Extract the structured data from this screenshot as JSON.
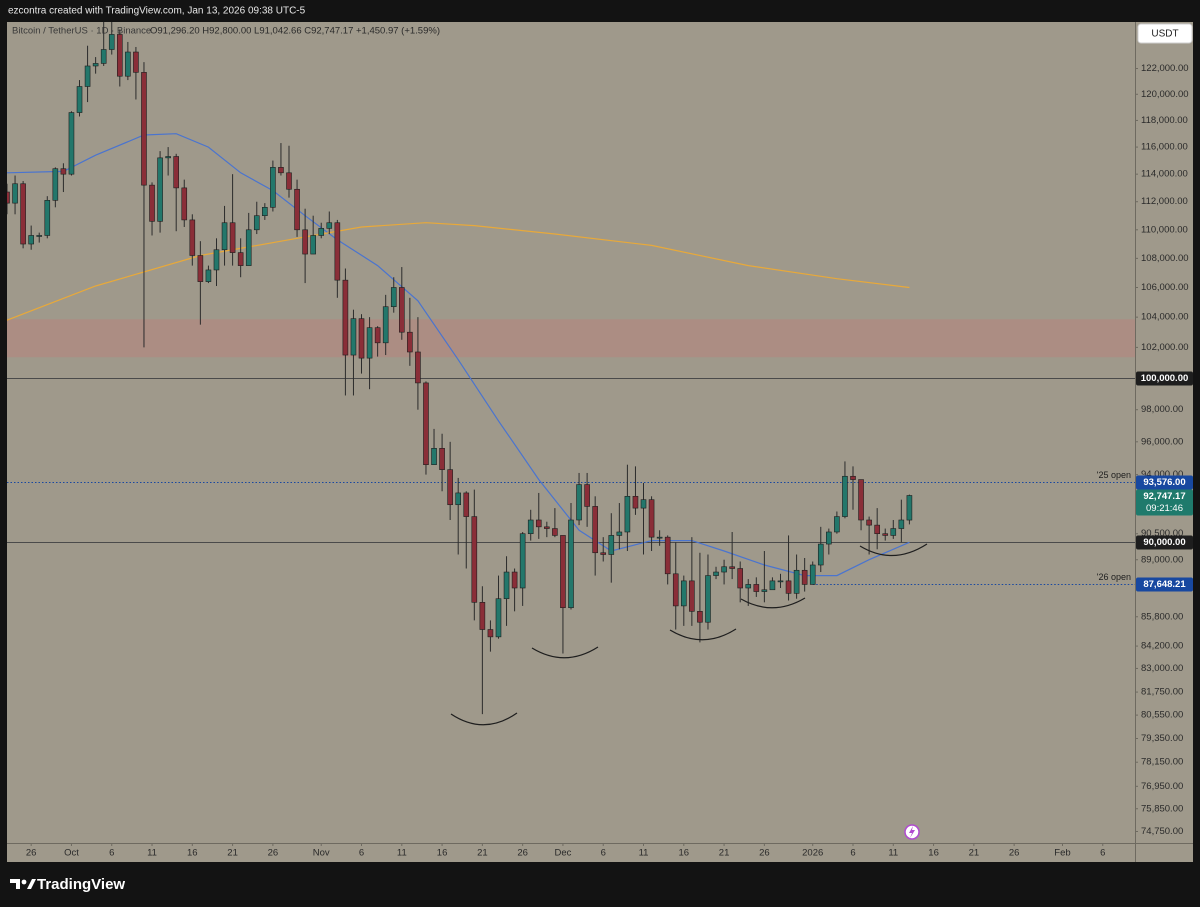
{
  "credit": "ezcontra created with TradingView.com, Jan 13, 2026 09:38 UTC-5",
  "currency_button": "USDT",
  "footer": {
    "brand": "TradingView"
  },
  "chart_data": {
    "type": "candlestick",
    "symbol": "Bitcoin / TetherUS · 1D · Binance",
    "ohlc_text": "O91,296.20 H92,800.00 L91,042.66 C92,747.17 +1,450.97 (+1.59%)",
    "log_scale": true,
    "grid": false,
    "up_color": "#23776b",
    "down_color": "#8a2e38",
    "wick_color": "#2b2b2b",
    "xlim": [
      "Sep 23",
      "Feb 10"
    ],
    "ylim": [
      74200,
      125700
    ],
    "x": [
      "Sep 23",
      "Sep 24",
      "Sep 25",
      "Sep 26",
      "Sep 27",
      "Sep 28",
      "Sep 29",
      "Sep 30",
      "Oct 1",
      "Oct 2",
      "Oct 3",
      "Oct 4",
      "Oct 5",
      "Oct 6",
      "Oct 7",
      "Oct 8",
      "Oct 9",
      "Oct 10",
      "Oct 11",
      "Oct 12",
      "Oct 13",
      "Oct 14",
      "Oct 15",
      "Oct 16",
      "Oct 17",
      "Oct 18",
      "Oct 19",
      "Oct 20",
      "Oct 21",
      "Oct 22",
      "Oct 23",
      "Oct 24",
      "Oct 25",
      "Oct 26",
      "Oct 27",
      "Oct 28",
      "Oct 29",
      "Oct 30",
      "Oct 31",
      "Nov 1",
      "Nov 2",
      "Nov 3",
      "Nov 4",
      "Nov 5",
      "Nov 6",
      "Nov 7",
      "Nov 8",
      "Nov 9",
      "Nov 10",
      "Nov 11",
      "Nov 12",
      "Nov 13",
      "Nov 14",
      "Nov 15",
      "Nov 16",
      "Nov 17",
      "Nov 18",
      "Nov 19",
      "Nov 20",
      "Nov 21",
      "Nov 22",
      "Nov 23",
      "Nov 24",
      "Nov 25",
      "Nov 26",
      "Nov 27",
      "Nov 28",
      "Nov 29",
      "Nov 30",
      "Dec 1",
      "Dec 2",
      "Dec 3",
      "Dec 4",
      "Dec 5",
      "Dec 6",
      "Dec 7",
      "Dec 8",
      "Dec 9",
      "Dec 10",
      "Dec 11",
      "Dec 12",
      "Dec 13",
      "Dec 14",
      "Dec 15",
      "Dec 16",
      "Dec 17",
      "Dec 18",
      "Dec 19",
      "Dec 20",
      "Dec 21",
      "Dec 22",
      "Dec 23",
      "Dec 24",
      "Dec 25",
      "Dec 26",
      "Dec 27",
      "Dec 28",
      "Dec 29",
      "Dec 30",
      "Dec 31",
      "Jan 1",
      "Jan 2",
      "Jan 3",
      "Jan 4",
      "Jan 5",
      "Jan 6",
      "Jan 7",
      "Jan 8",
      "Jan 9",
      "Jan 10",
      "Jan 11",
      "Jan 12",
      "Jan 13"
    ],
    "open": [
      112700,
      111900,
      113300,
      109000,
      109600,
      109600,
      112100,
      114400,
      114000,
      118600,
      120600,
      122200,
      122400,
      123500,
      124700,
      121400,
      123300,
      121700,
      113200,
      110600,
      115200,
      115300,
      113000,
      110700,
      108200,
      106400,
      107200,
      108600,
      110500,
      108400,
      107500,
      110000,
      111000,
      111600,
      114500,
      114100,
      112900,
      110000,
      108300,
      109600,
      110100,
      110500,
      106500,
      101500,
      103900,
      101300,
      103300,
      102300,
      104700,
      106000,
      103000,
      101700,
      99700,
      94600,
      95600,
      94300,
      92200,
      92900,
      91500,
      86600,
      85100,
      84700,
      86800,
      88300,
      87400,
      90500,
      91300,
      90900,
      90800,
      90400,
      86300,
      91300,
      93400,
      92100,
      89400,
      89300,
      90400,
      90600,
      92700,
      92000,
      92500,
      90300,
      90300,
      88200,
      86400,
      87800,
      86100,
      85500,
      88100,
      88300,
      88600,
      88500,
      87400,
      87600,
      87200,
      87300,
      87800,
      87800,
      87100,
      88400,
      87600,
      88700,
      89900,
      90600,
      91500,
      93900,
      93700,
      91300,
      91000,
      90500,
      90400,
      90800,
      91296.2
    ],
    "high": [
      113300,
      113900,
      113500,
      110300,
      109800,
      112400,
      114500,
      114800,
      118700,
      121100,
      123800,
      122900,
      125700,
      126200,
      125100,
      124100,
      123700,
      122500,
      113400,
      115700,
      116000,
      115500,
      113600,
      111100,
      109200,
      107500,
      109400,
      111700,
      114000,
      109400,
      111200,
      112000,
      111900,
      115000,
      116300,
      116100,
      113600,
      111500,
      111000,
      110500,
      111300,
      110700,
      107300,
      104500,
      104200,
      104000,
      103400,
      105500,
      106700,
      107400,
      105300,
      104000,
      99800,
      96800,
      96500,
      96000,
      93800,
      93000,
      93100,
      87500,
      85600,
      88100,
      89200,
      88500,
      90600,
      91900,
      92900,
      91200,
      92000,
      90400,
      92300,
      94100,
      94100,
      92700,
      90300,
      91700,
      92300,
      94600,
      94500,
      93500,
      92700,
      90700,
      90400,
      90000,
      88100,
      90300,
      89400,
      89300,
      88600,
      89000,
      90600,
      88900,
      87900,
      88000,
      89500,
      88000,
      88200,
      90400,
      89300,
      89100,
      88900,
      90900,
      90800,
      91800,
      94800,
      94500,
      93700,
      91500,
      92000,
      90800,
      91300,
      92500,
      92800
    ],
    "low": [
      111100,
      111100,
      108700,
      108600,
      109100,
      109400,
      111600,
      112700,
      113900,
      118300,
      119400,
      121600,
      122200,
      123100,
      120600,
      121100,
      119600,
      102000,
      109600,
      109800,
      113900,
      109900,
      110200,
      107500,
      103500,
      106300,
      106100,
      107500,
      107500,
      106700,
      107500,
      109700,
      110700,
      111300,
      113900,
      112300,
      109500,
      106300,
      108300,
      109400,
      109700,
      105300,
      98900,
      98900,
      100300,
      99300,
      101400,
      101500,
      104300,
      102500,
      100800,
      98000,
      94000,
      94600,
      93000,
      91300,
      89300,
      88500,
      85600,
      80600,
      83900,
      84600,
      85300,
      86100,
      86400,
      90100,
      90200,
      90300,
      90300,
      83800,
      86200,
      91000,
      90900,
      88100,
      88900,
      87700,
      89600,
      89500,
      91600,
      89300,
      89500,
      89800,
      87600,
      85100,
      85300,
      85300,
      84400,
      85100,
      87900,
      87600,
      87900,
      86600,
      86400,
      86900,
      86600,
      87300,
      87400,
      86700,
      86800,
      87200,
      87600,
      88300,
      89300,
      90500,
      91400,
      91900,
      90700,
      89300,
      89600,
      90100,
      90200,
      90000,
      91042.66
    ],
    "close": [
      111900,
      113300,
      109000,
      109600,
      109600,
      112100,
      114400,
      114000,
      118600,
      120600,
      122200,
      122400,
      123500,
      124700,
      121400,
      123300,
      121700,
      113200,
      110600,
      115200,
      115300,
      113000,
      110700,
      108200,
      106400,
      107200,
      108600,
      110500,
      108400,
      107500,
      110000,
      111000,
      111600,
      114500,
      114100,
      112900,
      110000,
      108300,
      109600,
      110100,
      110500,
      106500,
      101500,
      103900,
      101300,
      103300,
      102300,
      104700,
      106000,
      103000,
      101700,
      99700,
      94600,
      95600,
      94300,
      92200,
      92900,
      91500,
      86600,
      85100,
      84700,
      86800,
      88300,
      87400,
      90500,
      91300,
      90900,
      90800,
      90400,
      86300,
      91300,
      93400,
      92100,
      89400,
      89300,
      90400,
      90600,
      92700,
      92000,
      92500,
      90300,
      90300,
      88200,
      86400,
      87800,
      86100,
      85500,
      88100,
      88300,
      88600,
      88500,
      87400,
      87600,
      87200,
      87300,
      87800,
      87800,
      87100,
      88400,
      87600,
      88700,
      89900,
      90600,
      91500,
      93900,
      93700,
      91300,
      91000,
      90500,
      90400,
      90800,
      91300,
      92747.17
    ],
    "last_label": "92,747.17",
    "last_color": "#1f7a6c",
    "countdown": "09:21:46",
    "lines": [
      {
        "color": "#4a74cf",
        "x": [
          "Sep 23",
          "Sep 30",
          "Oct 4",
          "Oct 10",
          "Oct 14",
          "Oct 18",
          "Oct 22",
          "Oct 26",
          "Oct 30",
          "Nov 3",
          "Nov 8",
          "Nov 13",
          "Nov 18",
          "Nov 23",
          "Nov 28",
          "Dec 3",
          "Dec 7",
          "Dec 12",
          "Dec 17",
          "Dec 21",
          "Dec 26",
          "Dec 31",
          "Jan 4",
          "Jan 8",
          "Jan 13"
        ],
        "values": [
          114100,
          114200,
          115400,
          116900,
          117000,
          116000,
          114100,
          112800,
          111000,
          109300,
          107500,
          105100,
          101200,
          97300,
          93700,
          90700,
          89500,
          90100,
          90100,
          89500,
          88700,
          88100,
          88100,
          89000,
          90000
        ]
      },
      {
        "color": "#e8a93a",
        "x": [
          "Sep 23",
          "Oct 4",
          "Oct 17",
          "Oct 29",
          "Nov 6",
          "Nov 14",
          "Nov 20",
          "Nov 30",
          "Dec 12",
          "Dec 24",
          "Jan 4",
          "Jan 13"
        ],
        "values": [
          103800,
          106100,
          108200,
          109400,
          110200,
          110500,
          110300,
          109700,
          108900,
          107500,
          106600,
          106000
        ]
      }
    ],
    "zone": {
      "ylim": [
        101360,
        103860
      ],
      "color": "#b08a80"
    },
    "levels": [
      {
        "value": 100000,
        "label": "100,000.00",
        "style": "solid",
        "color": "#4a4a4a",
        "box": "#1e1e1e"
      },
      {
        "value": 93576,
        "label": "93,576.00",
        "style": "dotted",
        "color": "#1848a0",
        "box": "#1848a0",
        "note": "'25 open"
      },
      {
        "value": 90000,
        "label": "90,000.00",
        "style": "solid",
        "color": "#4a4a4a",
        "box": "#1e1e1e"
      },
      {
        "value": 87648.21,
        "label": "87,648.21",
        "style": "dotted",
        "color": "#1848a0",
        "box": "#1848a0",
        "note": "'26 open",
        "start": "Jan 1"
      }
    ],
    "yticks": [
      {
        "value": 122000,
        "label": "122,000.00"
      },
      {
        "value": 120000,
        "label": "120,000.00"
      },
      {
        "value": 118000,
        "label": "118,000.00"
      },
      {
        "value": 116000,
        "label": "116,000.00"
      },
      {
        "value": 114000,
        "label": "114,000.00"
      },
      {
        "value": 112000,
        "label": "112,000.00"
      },
      {
        "value": 110000,
        "label": "110,000.00"
      },
      {
        "value": 108000,
        "label": "108,000.00"
      },
      {
        "value": 106000,
        "label": "106,000.00"
      },
      {
        "value": 104000,
        "label": "104,000.00"
      },
      {
        "value": 102000,
        "label": "102,000.00"
      },
      {
        "value": 98000,
        "label": "98,000.00"
      },
      {
        "value": 96000,
        "label": "96,000.00"
      },
      {
        "value": 94000,
        "label": "94,000.00"
      },
      {
        "value": 90500,
        "label": "90,500.00"
      },
      {
        "value": 89000,
        "label": "89,000.00"
      },
      {
        "value": 85800,
        "label": "85,800.00"
      },
      {
        "value": 84200,
        "label": "84,200.00"
      },
      {
        "value": 83000,
        "label": "83,000.00"
      },
      {
        "value": 81750,
        "label": "81,750.00"
      },
      {
        "value": 80550,
        "label": "80,550.00"
      },
      {
        "value": 79350,
        "label": "79,350.00"
      },
      {
        "value": 78150,
        "label": "78,150.00"
      },
      {
        "value": 76950,
        "label": "76,950.00"
      },
      {
        "value": 75850,
        "label": "75,850.00"
      },
      {
        "value": 74750,
        "label": "74,750.00"
      }
    ],
    "xticks": [
      {
        "value": "Sep 26",
        "label": "26"
      },
      {
        "value": "Oct 1",
        "label": "Oct"
      },
      {
        "value": "Oct 6",
        "label": "6"
      },
      {
        "value": "Oct 11",
        "label": "11"
      },
      {
        "value": "Oct 16",
        "label": "16"
      },
      {
        "value": "Oct 21",
        "label": "21"
      },
      {
        "value": "Oct 26",
        "label": "26"
      },
      {
        "value": "Nov 1",
        "label": "Nov"
      },
      {
        "value": "Nov 6",
        "label": "6"
      },
      {
        "value": "Nov 11",
        "label": "11"
      },
      {
        "value": "Nov 16",
        "label": "16"
      },
      {
        "value": "Nov 21",
        "label": "21"
      },
      {
        "value": "Nov 26",
        "label": "26"
      },
      {
        "value": "Dec 1",
        "label": "Dec"
      },
      {
        "value": "Dec 6",
        "label": "6"
      },
      {
        "value": "Dec 11",
        "label": "11"
      },
      {
        "value": "Dec 16",
        "label": "16"
      },
      {
        "value": "Dec 21",
        "label": "21"
      },
      {
        "value": "Dec 26",
        "label": "26"
      },
      {
        "value": "Jan 1",
        "label": "2026"
      },
      {
        "value": "Jan 6",
        "label": "6"
      },
      {
        "value": "Jan 11",
        "label": "11"
      },
      {
        "value": "Jan 16",
        "label": "16"
      },
      {
        "value": "Jan 21",
        "label": "21"
      },
      {
        "value": "Jan 26",
        "label": "26"
      },
      {
        "value": "Feb 1",
        "label": "Feb"
      },
      {
        "value": "Feb 6",
        "label": "6"
      }
    ]
  }
}
